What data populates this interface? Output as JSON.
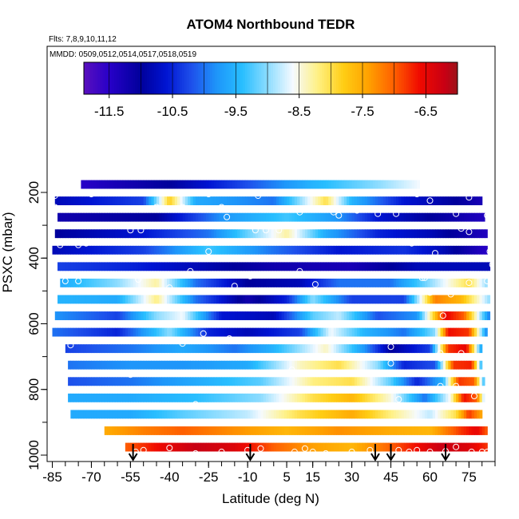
{
  "chart_data": {
    "type": "heatmap",
    "title": "ATOM4 Northbound TEDR",
    "subtitle_flights": "Flts: 7,8,9,10,11,12",
    "subtitle_dates": "MMDD: 0509,0512,0514,0517,0518,0519",
    "xlabel": "Latitude (deg N)",
    "ylabel": "PSXC (mbar)",
    "xlim": [
      -87,
      85
    ],
    "ylim": [
      1010,
      70
    ],
    "x_ticks": [
      -85,
      -70,
      -55,
      -40,
      -25,
      -10,
      5,
      15,
      30,
      45,
      60,
      75
    ],
    "x_tick_labels": [
      "-85",
      "-70",
      "-55",
      "-40",
      "-25",
      "-10",
      "5",
      "15",
      "30",
      "45",
      "60",
      "75"
    ],
    "y_ticks": [
      200,
      400,
      600,
      800,
      1000
    ],
    "y_tick_labels": [
      "200",
      "400",
      "600",
      "800",
      "1000"
    ],
    "colorbar": {
      "ticks": [
        -11.5,
        -10.5,
        -9.5,
        -8.5,
        -7.5,
        -6.5
      ],
      "tick_labels": [
        "-11.5",
        "-10.5",
        "-9.5",
        "-8.5",
        "-7.5",
        "-6.5"
      ],
      "range": [
        -11.9,
        -6.0
      ]
    },
    "pressure_levels": [
      175,
      225,
      275,
      325,
      375,
      425,
      475,
      525,
      575,
      625,
      675,
      725,
      775,
      825,
      875,
      925,
      975
    ],
    "rows": [
      {
        "p": 175,
        "x0": -74,
        "x1": 56,
        "knots": [
          [
            -74,
            -11.5
          ],
          [
            -40,
            -11.0
          ],
          [
            -10,
            -10.2
          ],
          [
            15,
            -9.5
          ],
          [
            40,
            -9.0
          ],
          [
            56,
            -8.6
          ]
        ]
      },
      {
        "p": 225,
        "x0": -84,
        "x1": 80,
        "knots": [
          [
            -84,
            -10.8
          ],
          [
            -50,
            -10.3
          ],
          [
            -40,
            -7.8
          ],
          [
            -30,
            -9.6
          ],
          [
            0,
            -10.0
          ],
          [
            20,
            -8.0
          ],
          [
            30,
            -9.5
          ],
          [
            50,
            -10.6
          ],
          [
            70,
            -11.0
          ],
          [
            80,
            -11.3
          ]
        ]
      },
      {
        "p": 275,
        "x0": -83,
        "x1": 81,
        "knots": [
          [
            -83,
            -11.2
          ],
          [
            -45,
            -11.0
          ],
          [
            -20,
            -9.8
          ],
          [
            5,
            -9.3
          ],
          [
            25,
            -9.8
          ],
          [
            40,
            -10.6
          ],
          [
            60,
            -11.0
          ],
          [
            81,
            -11.4
          ]
        ]
      },
      {
        "p": 325,
        "x0": -84,
        "x1": 82,
        "knots": [
          [
            -84,
            -11.0
          ],
          [
            -50,
            -10.6
          ],
          [
            -25,
            -10.0
          ],
          [
            5,
            -8.3
          ],
          [
            20,
            -9.6
          ],
          [
            40,
            -10.5
          ],
          [
            60,
            -10.8
          ],
          [
            82,
            -11.4
          ]
        ]
      },
      {
        "p": 375,
        "x0": -85,
        "x1": 82,
        "knots": [
          [
            -85,
            -10.8
          ],
          [
            -50,
            -10.3
          ],
          [
            -25,
            -9.3
          ],
          [
            0,
            -10.0
          ],
          [
            25,
            -10.6
          ],
          [
            50,
            -10.4
          ],
          [
            65,
            -10.8
          ],
          [
            82,
            -11.5
          ]
        ]
      },
      {
        "p": 425,
        "x0": -83,
        "x1": 83,
        "knots": [
          [
            -83,
            -10.3
          ],
          [
            -55,
            -10.5
          ],
          [
            -30,
            -10.8
          ],
          [
            0,
            -11.2
          ],
          [
            30,
            -11.3
          ],
          [
            55,
            -10.8
          ],
          [
            83,
            -10.8
          ]
        ]
      },
      {
        "p": 475,
        "x0": -82,
        "x1": 82,
        "knots": [
          [
            -82,
            -9.6
          ],
          [
            -60,
            -9.0
          ],
          [
            -45,
            -8.3
          ],
          [
            -30,
            -10.0
          ],
          [
            -10,
            -11.0
          ],
          [
            10,
            -10.8
          ],
          [
            25,
            -10.0
          ],
          [
            45,
            -10.0
          ],
          [
            60,
            -9.0
          ],
          [
            75,
            -8.0
          ],
          [
            82,
            -9.0
          ]
        ]
      },
      {
        "p": 525,
        "x0": -83,
        "x1": 83,
        "knots": [
          [
            -83,
            -9.5
          ],
          [
            -60,
            -9.6
          ],
          [
            -45,
            -8.2
          ],
          [
            -30,
            -10.0
          ],
          [
            -10,
            -11.2
          ],
          [
            5,
            -10.5
          ],
          [
            15,
            -9.0
          ],
          [
            30,
            -10.3
          ],
          [
            50,
            -10.3
          ],
          [
            62,
            -7.2
          ],
          [
            72,
            -7.6
          ],
          [
            83,
            -9.0
          ]
        ]
      },
      {
        "p": 575,
        "x0": -84,
        "x1": 83,
        "knots": [
          [
            -84,
            -9.8
          ],
          [
            -60,
            -10.3
          ],
          [
            -45,
            -9.0
          ],
          [
            -35,
            -8.6
          ],
          [
            -20,
            -10.6
          ],
          [
            0,
            -10.8
          ],
          [
            15,
            -9.2
          ],
          [
            25,
            -8.8
          ],
          [
            40,
            -10.2
          ],
          [
            55,
            -9.8
          ],
          [
            66,
            -6.5
          ],
          [
            73,
            -7.0
          ],
          [
            83,
            -10.0
          ]
        ]
      },
      {
        "p": 625,
        "x0": -85,
        "x1": 82,
        "knots": [
          [
            -85,
            -10.0
          ],
          [
            -60,
            -10.5
          ],
          [
            -40,
            -9.0
          ],
          [
            -25,
            -10.5
          ],
          [
            -10,
            -10.8
          ],
          [
            10,
            -10.3
          ],
          [
            22,
            -8.6
          ],
          [
            35,
            -9.5
          ],
          [
            50,
            -10.0
          ],
          [
            62,
            -9.0
          ],
          [
            67,
            -6.6
          ],
          [
            75,
            -6.8
          ],
          [
            82,
            -10.0
          ]
        ]
      },
      {
        "p": 675,
        "x0": -80,
        "x1": 80,
        "knots": [
          [
            -80,
            -10.3
          ],
          [
            -55,
            -10.0
          ],
          [
            -35,
            -9.6
          ],
          [
            -15,
            -10.0
          ],
          [
            0,
            -9.5
          ],
          [
            20,
            -8.4
          ],
          [
            35,
            -9.8
          ],
          [
            45,
            -11.0
          ],
          [
            60,
            -10.3
          ],
          [
            67,
            -6.8
          ],
          [
            74,
            -6.5
          ],
          [
            80,
            -9.8
          ]
        ]
      },
      {
        "p": 725,
        "x0": -79,
        "x1": 80,
        "knots": [
          [
            -79,
            -10.0
          ],
          [
            -55,
            -9.8
          ],
          [
            -35,
            -9.8
          ],
          [
            -10,
            -9.6
          ],
          [
            10,
            -8.4
          ],
          [
            25,
            -8.0
          ],
          [
            40,
            -9.0
          ],
          [
            50,
            -10.5
          ],
          [
            62,
            -10.2
          ],
          [
            69,
            -6.8
          ],
          [
            76,
            -6.7
          ],
          [
            80,
            -9.6
          ]
        ]
      },
      {
        "p": 775,
        "x0": -79,
        "x1": 81,
        "knots": [
          [
            -79,
            -10.2
          ],
          [
            -55,
            -10.0
          ],
          [
            -30,
            -9.6
          ],
          [
            -5,
            -9.2
          ],
          [
            15,
            -8.2
          ],
          [
            30,
            -8.0
          ],
          [
            45,
            -9.2
          ],
          [
            55,
            -10.5
          ],
          [
            65,
            -9.5
          ],
          [
            71,
            -6.8
          ],
          [
            77,
            -7.0
          ],
          [
            81,
            -9.5
          ]
        ]
      },
      {
        "p": 825,
        "x0": -79,
        "x1": 81,
        "knots": [
          [
            -79,
            -9.6
          ],
          [
            -55,
            -9.6
          ],
          [
            -30,
            -9.4
          ],
          [
            -5,
            -9.0
          ],
          [
            15,
            -8.0
          ],
          [
            30,
            -7.6
          ],
          [
            45,
            -8.5
          ],
          [
            58,
            -10.0
          ],
          [
            68,
            -8.5
          ],
          [
            73,
            -6.6
          ],
          [
            78,
            -7.0
          ],
          [
            81,
            -9.0
          ]
        ]
      },
      {
        "p": 875,
        "x0": -78,
        "x1": 80,
        "knots": [
          [
            -78,
            -9.6
          ],
          [
            -55,
            -9.6
          ],
          [
            -35,
            -9.2
          ],
          [
            -10,
            -8.8
          ],
          [
            10,
            -8.0
          ],
          [
            30,
            -7.5
          ],
          [
            45,
            -8.2
          ],
          [
            60,
            -8.8
          ],
          [
            70,
            -8.0
          ],
          [
            75,
            -6.8
          ],
          [
            80,
            -7.5
          ]
        ]
      },
      {
        "p": 925,
        "x0": -65,
        "x1": 82,
        "knots": [
          [
            -65,
            -7.5
          ],
          [
            -50,
            -7.2
          ],
          [
            -35,
            -7.0
          ],
          [
            -15,
            -7.3
          ],
          [
            5,
            -7.6
          ],
          [
            25,
            -7.3
          ],
          [
            45,
            -7.5
          ],
          [
            60,
            -7.6
          ],
          [
            72,
            -6.8
          ],
          [
            78,
            -6.5
          ],
          [
            82,
            -7.0
          ]
        ]
      },
      {
        "p": 975,
        "x0": -57,
        "x1": 82,
        "knots": [
          [
            -57,
            -7.0
          ],
          [
            -45,
            -6.6
          ],
          [
            -30,
            -6.2
          ],
          [
            -15,
            -6.4
          ],
          [
            0,
            -7.0
          ],
          [
            15,
            -7.4
          ],
          [
            30,
            -7.6
          ],
          [
            45,
            -7.0
          ],
          [
            55,
            -6.6
          ],
          [
            65,
            -6.2
          ],
          [
            75,
            -6.4
          ],
          [
            82,
            -6.8
          ]
        ]
      }
    ],
    "markers": [
      [
        -84,
        210
      ],
      [
        -70,
        205
      ],
      [
        -84,
        245
      ],
      [
        -25,
        205
      ],
      [
        -6,
        210
      ],
      [
        -45,
        245
      ],
      [
        -38,
        250
      ],
      [
        -35,
        245
      ],
      [
        -20,
        245
      ],
      [
        10,
        260
      ],
      [
        40,
        265
      ],
      [
        47,
        265
      ],
      [
        23,
        260
      ],
      [
        55,
        205
      ],
      [
        60,
        225
      ],
      [
        75,
        215
      ],
      [
        85,
        215
      ],
      [
        -18,
        275
      ],
      [
        25,
        270
      ],
      [
        32,
        255
      ],
      [
        65,
        250
      ],
      [
        70,
        265
      ],
      [
        82,
        270
      ],
      [
        86,
        270
      ],
      [
        -7,
        315
      ],
      [
        -3,
        315
      ],
      [
        2,
        315
      ],
      [
        -55,
        315
      ],
      [
        -51,
        315
      ],
      [
        47,
        350
      ],
      [
        53,
        355
      ],
      [
        61,
        350
      ],
      [
        75,
        320
      ],
      [
        72,
        310
      ],
      [
        85,
        330
      ],
      [
        -82,
        360
      ],
      [
        -25,
        380
      ],
      [
        -75,
        360
      ],
      [
        -72,
        355
      ],
      [
        83,
        380
      ],
      [
        62,
        385
      ],
      [
        -32,
        440
      ],
      [
        10,
        440
      ],
      [
        -9,
        455
      ],
      [
        -52,
        465
      ],
      [
        16,
        480
      ],
      [
        -15,
        485
      ],
      [
        -75,
        470
      ],
      [
        -80,
        470
      ],
      [
        57,
        460
      ],
      [
        58,
        460
      ],
      [
        75,
        475
      ],
      [
        82,
        470
      ],
      [
        -40,
        490
      ],
      [
        -80,
        500
      ],
      [
        60,
        505
      ],
      [
        68,
        510
      ],
      [
        84,
        420
      ],
      [
        65,
        575
      ],
      [
        71,
        600
      ],
      [
        -88,
        620
      ],
      [
        -27,
        630
      ],
      [
        -17,
        645
      ],
      [
        -35,
        660
      ],
      [
        -78,
        665
      ],
      [
        45,
        670
      ],
      [
        58,
        700
      ],
      [
        64,
        705
      ],
      [
        64,
        690
      ],
      [
        72,
        690
      ],
      [
        -7,
        700
      ],
      [
        45,
        720
      ],
      [
        7,
        740
      ],
      [
        -55,
        755
      ],
      [
        -84,
        795
      ],
      [
        -30,
        845
      ],
      [
        48,
        830
      ],
      [
        64,
        790
      ],
      [
        66,
        800
      ],
      [
        77,
        820
      ],
      [
        70,
        790
      ],
      [
        -55,
        900
      ],
      [
        -58,
        955
      ],
      [
        -50,
        985
      ],
      [
        -40,
        978
      ],
      [
        -20,
        990
      ],
      [
        -10,
        985
      ],
      [
        -5,
        980
      ],
      [
        8,
        990
      ],
      [
        12,
        980
      ],
      [
        15,
        990
      ],
      [
        20,
        995
      ],
      [
        30,
        990
      ],
      [
        37,
        985
      ],
      [
        48,
        985
      ],
      [
        52,
        990
      ],
      [
        60,
        990
      ],
      [
        66,
        988
      ],
      [
        70,
        975
      ],
      [
        76,
        990
      ],
      [
        82,
        990
      ],
      [
        55,
        985
      ],
      [
        -30,
        995
      ],
      [
        -53,
        990
      ],
      [
        80,
        990
      ]
    ],
    "arrows": [
      -54,
      -9,
      39,
      45,
      66
    ]
  }
}
